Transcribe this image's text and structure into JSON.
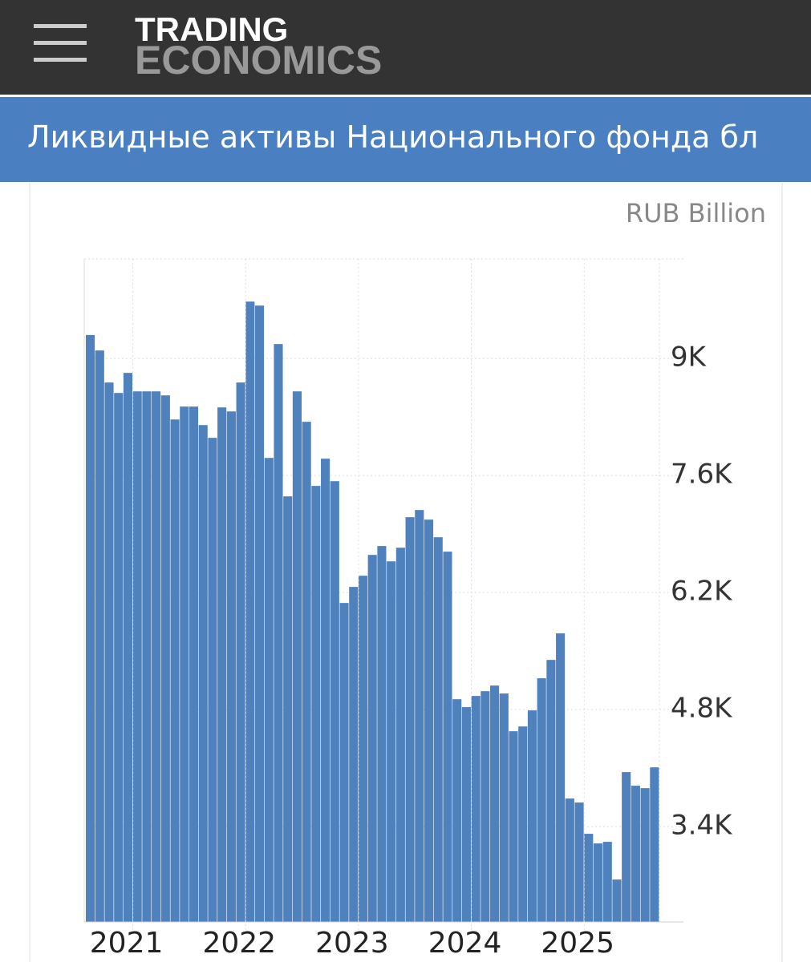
{
  "header": {
    "logo_top": "TRADING",
    "logo_bottom": "ECONOMICS"
  },
  "chart_data": {
    "type": "bar",
    "title": "Ликвидные активы Национального фонда бл",
    "unit": "RUB Billion",
    "color": "#4f81bd",
    "categories": [
      null,
      null,
      null,
      null,
      null,
      "2021",
      null,
      null,
      null,
      null,
      null,
      null,
      null,
      null,
      null,
      null,
      null,
      "2022",
      null,
      null,
      null,
      null,
      null,
      null,
      null,
      null,
      null,
      null,
      null,
      "2023",
      null,
      null,
      null,
      null,
      null,
      null,
      null,
      null,
      null,
      null,
      null,
      "2024",
      null,
      null,
      null,
      null,
      null,
      null,
      null,
      null,
      null,
      null,
      null,
      "2025",
      null,
      null,
      null,
      null,
      null,
      null,
      null
    ],
    "values": [
      9280,
      9095,
      8712,
      8587,
      8827,
      8606,
      8606,
      8606,
      8558,
      8270,
      8424,
      8424,
      8203,
      8050,
      8414,
      8366,
      8712,
      9680,
      9632,
      7810,
      9172,
      7350,
      8606,
      8242,
      7475,
      7801,
      7532,
      6075,
      6267,
      6401,
      6650,
      6756,
      6573,
      6736,
      7101,
      7187,
      7072,
      6861,
      6689,
      4924,
      4829,
      4963,
      5020,
      5087,
      4992,
      4541,
      4598,
      4790,
      5174,
      5394,
      5711,
      3736,
      3688,
      3314,
      3199,
      3218,
      2767,
      4052,
      3889,
      3860,
      4109
    ],
    "ylim": [
      2260,
      10190
    ],
    "yticks": [
      {
        "value": 3400,
        "label": "3.4K"
      },
      {
        "value": 4800,
        "label": "4.8K"
      },
      {
        "value": 6200,
        "label": "6.2K"
      },
      {
        "value": 7600,
        "label": "7.6K"
      },
      {
        "value": 9000,
        "label": "9K"
      }
    ],
    "grid": true
  }
}
